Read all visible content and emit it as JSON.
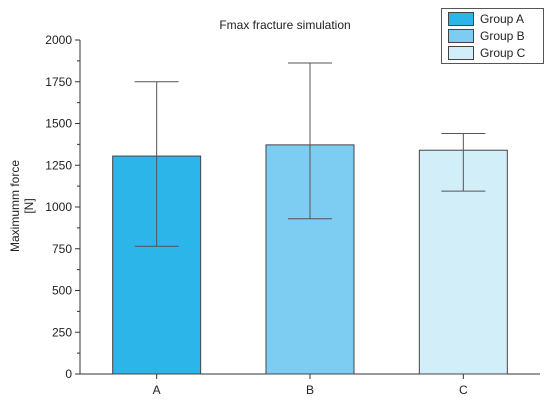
{
  "chart_data": {
    "type": "bar",
    "title": "Fmax fracture simulation",
    "ylabel": [
      "Maximumm force",
      "[N]"
    ],
    "xlabel": "",
    "categories": [
      "A",
      "B",
      "C"
    ],
    "values": [
      1305,
      1372,
      1340
    ],
    "error_low": [
      765,
      930,
      1095
    ],
    "error_high": [
      1750,
      1862,
      1440
    ],
    "ylim": [
      0,
      2000
    ],
    "yticks": [
      0,
      250,
      500,
      750,
      1000,
      1250,
      1500,
      1750,
      2000
    ],
    "colors": [
      "#2bb5e9",
      "#7dcdf2",
      "#d2eef9"
    ],
    "legend": {
      "placement": "top-right",
      "entries": [
        "Group A",
        "Group B",
        "Group C"
      ]
    },
    "grid": false
  }
}
